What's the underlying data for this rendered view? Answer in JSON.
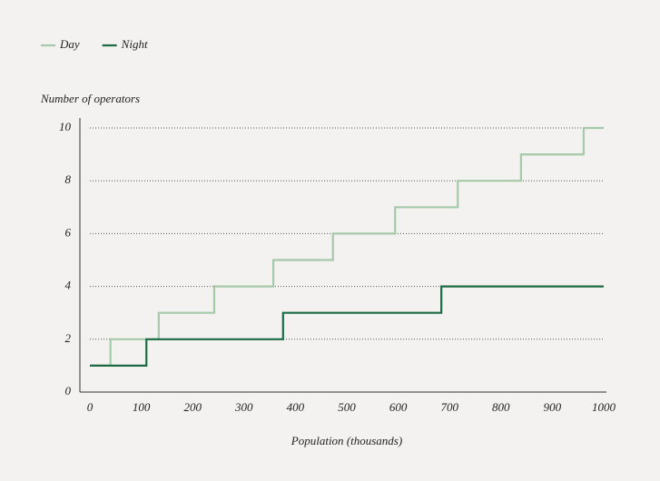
{
  "chart_data": {
    "type": "line",
    "step": "post",
    "y_label": "Number of operators",
    "x_label": "Population (thousands)",
    "xlim": [
      0,
      1000
    ],
    "xticks": [
      0,
      100,
      200,
      300,
      400,
      500,
      600,
      700,
      800,
      900,
      1000
    ],
    "ylim": [
      0,
      10
    ],
    "yticks": [
      0,
      2,
      4,
      6,
      8,
      10
    ],
    "grid": true,
    "legend": "top-left",
    "series": [
      {
        "name": "Day",
        "color": "#a5c9a9",
        "x": [
          0,
          40,
          134,
          242,
          357,
          473,
          594,
          716,
          839,
          961,
          1000
        ],
        "values": [
          1,
          2,
          3,
          4,
          5,
          6,
          7,
          8,
          9,
          10,
          10
        ]
      },
      {
        "name": "Night",
        "color": "#1d6b45",
        "x": [
          0,
          110,
          376,
          684,
          1000
        ],
        "values": [
          1,
          2,
          3,
          4,
          4
        ]
      }
    ]
  }
}
